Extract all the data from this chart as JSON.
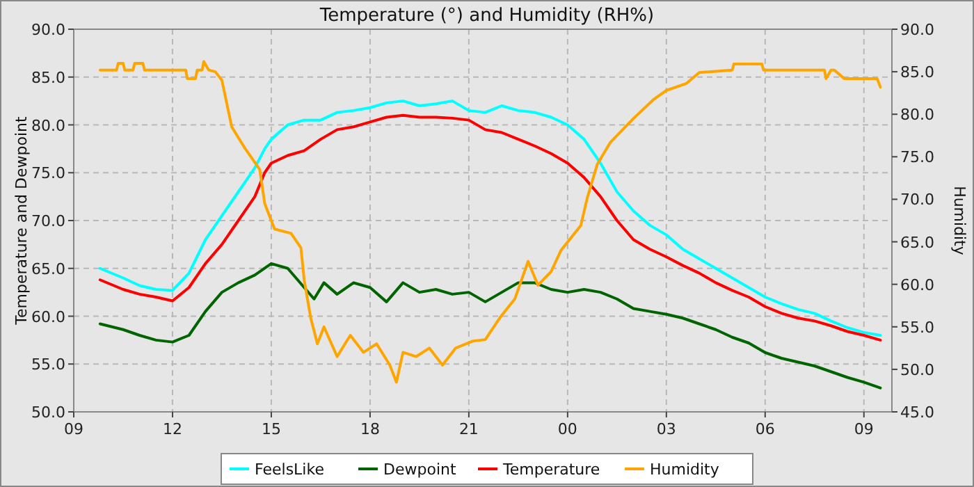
{
  "chart_data": {
    "type": "line",
    "title": "Temperature (°) and Humidity (RH%)",
    "ylabel": "Temperature and Dewpoint",
    "y2label": "Humidity",
    "xlim": [
      9,
      33.85
    ],
    "xticks": [
      {
        "value": 9,
        "label": "09"
      },
      {
        "value": 12,
        "label": "12"
      },
      {
        "value": 15,
        "label": "15"
      },
      {
        "value": 18,
        "label": "18"
      },
      {
        "value": 21,
        "label": "21"
      },
      {
        "value": 24,
        "label": "00"
      },
      {
        "value": 27,
        "label": "03"
      },
      {
        "value": 30,
        "label": "06"
      },
      {
        "value": 33,
        "label": "09"
      }
    ],
    "ylim": [
      50,
      90
    ],
    "yticks": [
      {
        "value": 50,
        "label": "50.0"
      },
      {
        "value": 55,
        "label": "55.0"
      },
      {
        "value": 60,
        "label": "60.0"
      },
      {
        "value": 65,
        "label": "65.0"
      },
      {
        "value": 70,
        "label": "70.0"
      },
      {
        "value": 75,
        "label": "75.0"
      },
      {
        "value": 80,
        "label": "80.0"
      },
      {
        "value": 85,
        "label": "85.0"
      },
      {
        "value": 90,
        "label": "90.0"
      }
    ],
    "y2lim": [
      45,
      90
    ],
    "y2ticks": [
      {
        "value": 45,
        "label": "45.0"
      },
      {
        "value": 50,
        "label": "50.0"
      },
      {
        "value": 55,
        "label": "55.0"
      },
      {
        "value": 60,
        "label": "60.0"
      },
      {
        "value": 65,
        "label": "65.0"
      },
      {
        "value": 70,
        "label": "70.0"
      },
      {
        "value": 75,
        "label": "75.0"
      },
      {
        "value": 80,
        "label": "80.0"
      },
      {
        "value": 85,
        "label": "85.0"
      },
      {
        "value": 90,
        "label": "90.0"
      }
    ],
    "grid": true,
    "legend": "bottom",
    "marker": "none",
    "series": [
      {
        "name": "FeelsLike",
        "color": "#00ffff",
        "x": [
          9.8,
          10.5,
          11,
          11.5,
          12,
          12.5,
          13,
          13.5,
          14,
          14.5,
          14.8,
          15,
          15.5,
          16,
          16.5,
          17,
          17.5,
          18,
          18.5,
          19,
          19.5,
          20,
          20.5,
          21,
          21.5,
          22,
          22.5,
          23,
          23.5,
          24,
          24.5,
          25,
          25.5,
          26,
          26.5,
          27,
          27.5,
          28,
          28.5,
          29,
          29.5,
          30,
          30.5,
          31,
          31.5,
          32,
          32.5,
          33,
          33.5
        ],
        "values": [
          65,
          64,
          63.2,
          62.8,
          62.7,
          64.5,
          68,
          70.5,
          73,
          75.5,
          77.5,
          78.5,
          80,
          80.5,
          80.5,
          81.3,
          81.5,
          81.8,
          82.3,
          82.5,
          82,
          82.2,
          82.5,
          81.5,
          81.3,
          82,
          81.5,
          81.3,
          80.8,
          80,
          78.5,
          76,
          73,
          71,
          69.5,
          68.5,
          67,
          66,
          65,
          64,
          63,
          62,
          61.3,
          60.7,
          60.3,
          59.5,
          58.8,
          58.3,
          58
        ]
      },
      {
        "name": "Dewpoint",
        "color": "#006400",
        "x": [
          9.8,
          10.5,
          11,
          11.5,
          12,
          12.5,
          13,
          13.5,
          14,
          14.5,
          15,
          15.5,
          16,
          16.3,
          16.6,
          17,
          17.5,
          18,
          18.5,
          19,
          19.5,
          20,
          20.5,
          21,
          21.5,
          22,
          22.5,
          23,
          23.5,
          24,
          24.5,
          25,
          25.5,
          26,
          26.5,
          27,
          27.5,
          28,
          28.5,
          29,
          29.5,
          30,
          30.5,
          31,
          31.5,
          32,
          32.5,
          33,
          33.5
        ],
        "values": [
          59.2,
          58.6,
          58,
          57.5,
          57.3,
          58,
          60.5,
          62.5,
          63.5,
          64.3,
          65.5,
          65,
          63,
          61.8,
          63.5,
          62.3,
          63.5,
          63,
          61.5,
          63.5,
          62.5,
          62.8,
          62.3,
          62.5,
          61.5,
          62.5,
          63.5,
          63.5,
          62.8,
          62.5,
          62.8,
          62.5,
          61.8,
          60.8,
          60.5,
          60.2,
          59.8,
          59.2,
          58.6,
          57.8,
          57.2,
          56.2,
          55.6,
          55.2,
          54.8,
          54.2,
          53.6,
          53.1,
          52.5
        ]
      },
      {
        "name": "Temperature",
        "color": "#ff0000",
        "x": [
          9.8,
          10.5,
          11,
          11.5,
          12,
          12.5,
          13,
          13.5,
          14,
          14.5,
          14.8,
          15,
          15.5,
          16,
          16.5,
          17,
          17.5,
          18,
          18.5,
          19,
          19.5,
          20,
          20.5,
          21,
          21.5,
          22,
          22.5,
          23,
          23.5,
          24,
          24.5,
          25,
          25.5,
          26,
          26.5,
          27,
          27.5,
          28,
          28.5,
          29,
          29.5,
          30,
          30.5,
          31,
          31.5,
          32,
          32.5,
          33,
          33.5
        ],
        "values": [
          63.8,
          62.8,
          62.3,
          62,
          61.6,
          63,
          65.5,
          67.5,
          70,
          72.5,
          75,
          76,
          76.8,
          77.3,
          78.5,
          79.5,
          79.8,
          80.3,
          80.8,
          81,
          80.8,
          80.8,
          80.7,
          80.5,
          79.5,
          79.2,
          78.5,
          77.8,
          77,
          76,
          74.5,
          72.5,
          70,
          68,
          67,
          66.2,
          65.3,
          64.5,
          63.5,
          62.7,
          62,
          61,
          60.3,
          59.8,
          59.5,
          59,
          58.4,
          58,
          57.5
        ]
      },
      {
        "name": "Humidity",
        "color": "#ffa500",
        "axis": "y2",
        "x": [
          9.8,
          10.3,
          10.35,
          10.5,
          10.55,
          10.8,
          10.85,
          11.1,
          11.15,
          12.4,
          12.45,
          12.7,
          12.75,
          12.9,
          12.95,
          13.1,
          13.3,
          13.5,
          13.8,
          14.2,
          14.65,
          14.8,
          15.1,
          15.6,
          15.9,
          16,
          16.2,
          16.4,
          16.6,
          17,
          17.4,
          17.8,
          18.2,
          18.6,
          18.8,
          19,
          19.4,
          19.8,
          20.2,
          20.6,
          21.1,
          21.5,
          21.95,
          22.4,
          22.8,
          23.1,
          23.5,
          23.8,
          24.4,
          24.6,
          24.9,
          25.3,
          26,
          26.6,
          27,
          27.6,
          28,
          29,
          29.05,
          29.9,
          29.95,
          31.8,
          31.85,
          32,
          32.1,
          32.4,
          33.4,
          33.5
        ],
        "values": [
          85.2,
          85.2,
          86,
          86,
          85.2,
          85.2,
          86,
          86,
          85.2,
          85.2,
          84.2,
          84.2,
          85.2,
          85.2,
          86.2,
          85.2,
          85,
          84,
          78.5,
          76,
          73.5,
          69.5,
          66.5,
          66,
          64.3,
          60.5,
          56,
          53,
          55,
          51.5,
          54,
          52,
          53,
          50.5,
          48.5,
          52,
          51.5,
          52.5,
          50.5,
          52.5,
          53.3,
          53.5,
          56.1,
          58.3,
          62.7,
          59.9,
          61.5,
          64,
          66.9,
          70.2,
          74.1,
          76.7,
          79.5,
          81.7,
          82.8,
          83.6,
          84.9,
          85.2,
          85.9,
          85.9,
          85.2,
          85.2,
          84.2,
          85.2,
          85.2,
          84.2,
          84.2,
          83.2
        ]
      }
    ]
  }
}
